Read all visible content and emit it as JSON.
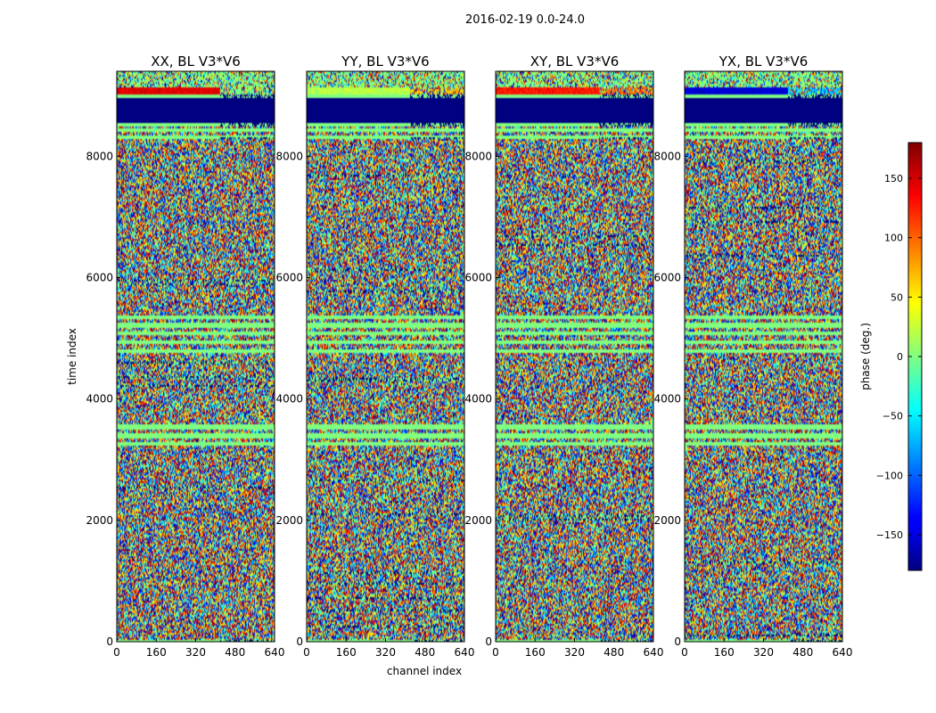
{
  "chart_data": {
    "type": "heatmap",
    "suptitle": "2016-02-19 0.0-24.0",
    "xlabel": "channel index",
    "ylabel": "time index",
    "xlim": [
      0,
      640
    ],
    "ylim": [
      0,
      9400
    ],
    "xticks": [
      0,
      160,
      320,
      480,
      640
    ],
    "yticks": [
      0,
      2000,
      4000,
      6000,
      8000
    ],
    "panels": [
      {
        "title": "XX, BL V3*V6",
        "top_band_phase": 145,
        "top_band_alt_phase": 0
      },
      {
        "title": "YY, BL V3*V6",
        "top_band_phase": 20,
        "top_band_alt_phase": 60
      },
      {
        "title": "XY, BL V3*V6",
        "top_band_phase": 130,
        "top_band_alt_phase": 100
      },
      {
        "title": "YX, BL V3*V6",
        "top_band_phase": -150,
        "top_band_alt_phase": -60
      }
    ],
    "colorbar": {
      "label": "phase (deg.)",
      "range": [
        -180,
        180
      ],
      "ticks": [
        150,
        100,
        50,
        0,
        -50,
        -100,
        -150
      ],
      "tick_labels": [
        "150",
        "100",
        "50",
        "0",
        "−50",
        "−100",
        "−150"
      ],
      "colormap": "jet"
    },
    "flagged_time_ranges": [
      [
        0,
        40
      ],
      [
        8280,
        8320
      ],
      [
        8500,
        8560
      ],
      [
        8960,
        9020
      ]
    ],
    "low_phase_time_ranges": [
      [
        8560,
        8960
      ]
    ],
    "quiet_time_ranges": [
      [
        3150,
        3650
      ],
      [
        4750,
        5450
      ],
      [
        8320,
        8500
      ],
      [
        9020,
        9150
      ]
    ]
  }
}
